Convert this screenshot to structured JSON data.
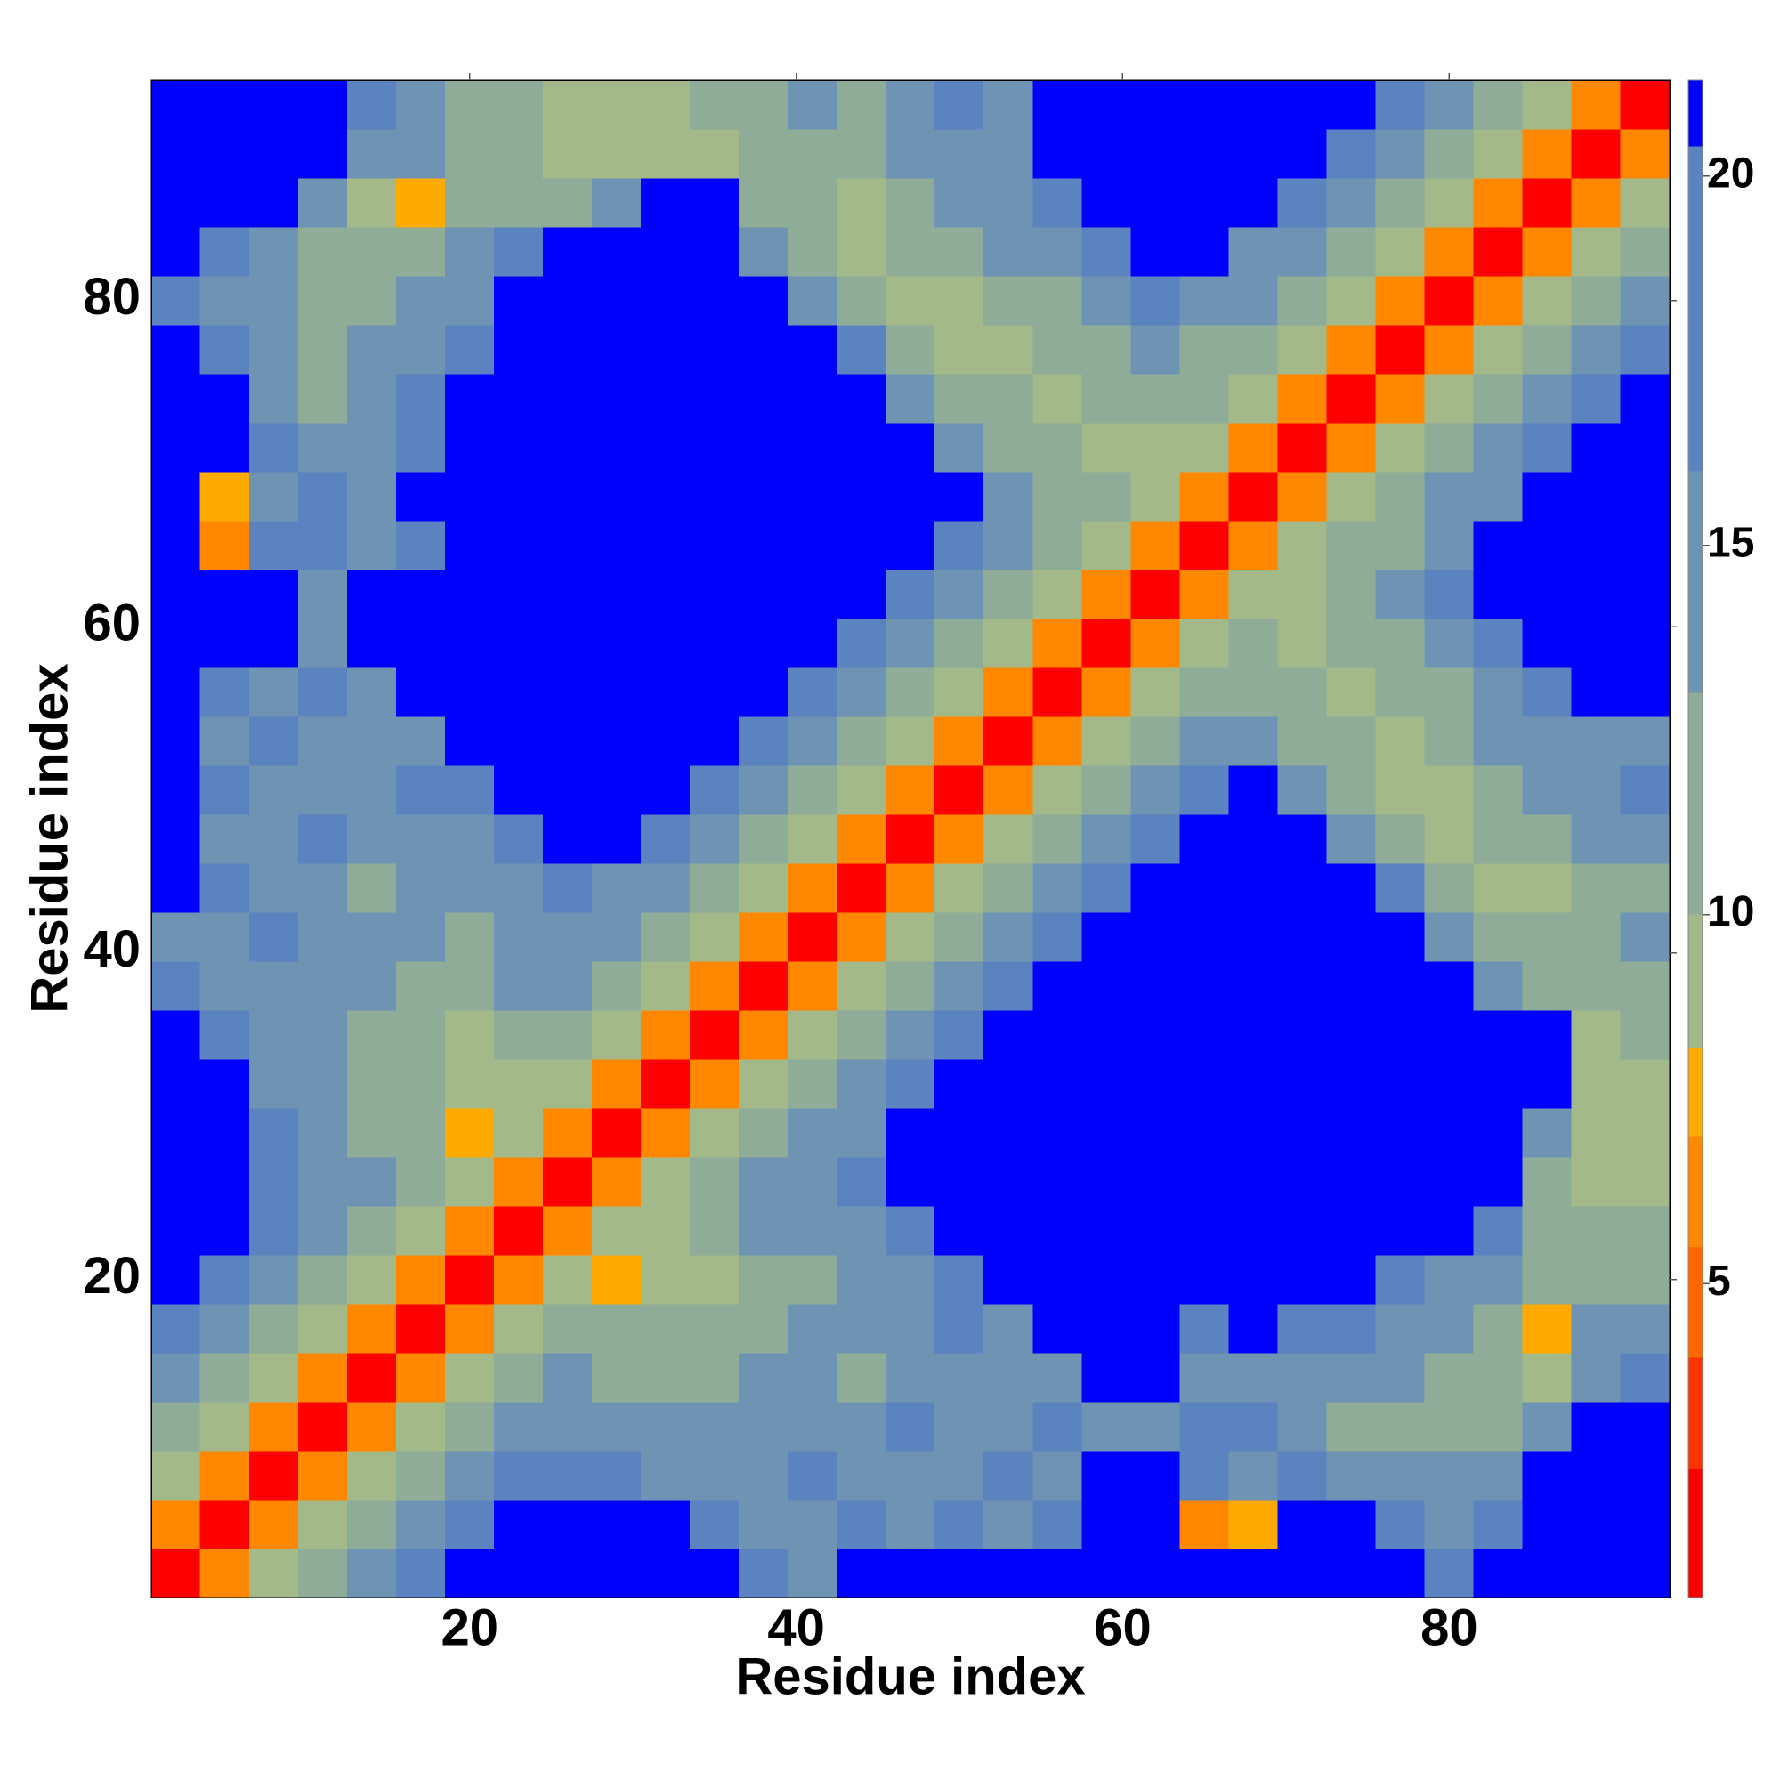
{
  "chart_data": {
    "type": "heatmap",
    "xlabel": "Residue index",
    "ylabel": "Residue index",
    "x": [
      2,
      5,
      8,
      11,
      14,
      17,
      20,
      23,
      26,
      29,
      32,
      35,
      38,
      41,
      44,
      47,
      50,
      53,
      56,
      59,
      62,
      65,
      68,
      71,
      74,
      77,
      80,
      83,
      86,
      89,
      92
    ],
    "y": [
      2,
      5,
      8,
      11,
      14,
      17,
      20,
      23,
      26,
      29,
      32,
      35,
      38,
      41,
      44,
      47,
      50,
      53,
      56,
      59,
      62,
      65,
      68,
      71,
      74,
      77,
      80,
      83,
      86,
      89,
      92
    ],
    "symmetric": true,
    "values": [
      [
        2
      ],
      [
        6,
        2
      ],
      [
        9,
        6,
        2
      ],
      [
        13,
        9,
        6,
        2
      ],
      [
        16,
        13,
        9,
        6,
        2
      ],
      [
        17,
        16,
        13,
        9,
        6,
        2
      ],
      [
        22,
        17,
        16,
        13,
        9,
        6,
        2
      ],
      [
        22,
        22,
        17,
        16,
        13,
        9,
        6,
        2
      ],
      [
        22,
        22,
        17,
        15,
        14,
        12,
        9,
        6,
        2
      ],
      [
        22,
        22,
        17,
        15,
        13,
        11,
        8,
        9,
        6,
        2
      ],
      [
        22,
        22,
        16,
        15,
        12,
        11,
        9,
        10,
        9,
        6,
        2
      ],
      [
        22,
        17,
        16,
        14,
        13,
        11,
        10,
        12,
        12,
        9,
        6,
        2
      ],
      [
        17,
        15,
        16,
        14,
        15,
        13,
        12,
        14,
        15,
        13,
        9,
        6,
        2
      ],
      [
        16,
        16,
        17,
        15,
        16,
        14,
        13,
        15,
        16,
        15,
        13,
        9,
        6,
        2
      ],
      [
        22,
        17,
        16,
        15,
        11,
        15,
        14,
        16,
        17,
        16,
        14,
        12,
        9,
        6,
        2
      ],
      [
        22,
        16,
        15,
        17,
        14,
        16,
        15,
        17,
        22,
        22,
        17,
        15,
        12,
        9,
        6,
        2
      ],
      [
        22,
        17,
        16,
        15,
        16,
        17,
        17,
        22,
        22,
        22,
        22,
        17,
        15,
        12,
        9,
        6,
        2
      ],
      [
        22,
        16,
        17,
        15,
        16,
        15,
        22,
        22,
        22,
        22,
        22,
        22,
        17,
        15,
        12,
        9,
        6,
        2
      ],
      [
        22,
        17,
        16,
        17,
        16,
        22,
        22,
        22,
        22,
        22,
        22,
        22,
        22,
        17,
        15,
        12,
        9,
        6,
        2
      ],
      [
        22,
        22,
        22,
        16,
        22,
        22,
        22,
        22,
        22,
        22,
        22,
        22,
        22,
        22,
        17,
        15,
        12,
        9,
        6,
        2
      ],
      [
        22,
        22,
        22,
        16,
        22,
        22,
        22,
        22,
        22,
        22,
        22,
        22,
        22,
        22,
        22,
        17,
        14,
        12,
        9,
        6,
        2
      ],
      [
        22,
        7,
        17,
        17,
        16,
        17,
        22,
        22,
        22,
        22,
        22,
        22,
        22,
        22,
        22,
        22,
        17,
        15,
        12,
        9,
        6,
        2
      ],
      [
        22,
        8,
        16,
        17,
        16,
        22,
        22,
        22,
        22,
        22,
        22,
        22,
        22,
        22,
        22,
        22,
        22,
        16,
        13,
        11,
        9,
        6,
        2
      ],
      [
        22,
        22,
        17,
        16,
        15,
        17,
        22,
        22,
        22,
        22,
        22,
        22,
        22,
        22,
        22,
        22,
        16,
        13,
        11,
        9,
        10,
        9,
        6,
        2
      ],
      [
        22,
        22,
        16,
        12,
        15,
        17,
        22,
        22,
        22,
        22,
        22,
        22,
        22,
        22,
        22,
        16,
        13,
        11,
        9,
        11,
        12,
        11,
        9,
        6,
        2
      ],
      [
        22,
        17,
        16,
        11,
        14,
        15,
        17,
        22,
        22,
        22,
        22,
        22,
        22,
        22,
        17,
        13,
        10,
        9,
        11,
        13,
        14,
        13,
        12,
        9,
        6,
        2
      ],
      [
        17,
        16,
        15,
        11,
        13,
        14,
        16,
        22,
        22,
        22,
        22,
        22,
        22,
        16,
        12,
        10,
        9,
        11,
        13,
        15,
        17,
        16,
        14,
        12,
        9,
        6,
        2
      ],
      [
        22,
        17,
        15,
        13,
        12,
        13,
        15,
        17,
        22,
        22,
        22,
        22,
        16,
        12,
        9,
        11,
        12,
        14,
        16,
        17,
        22,
        22,
        16,
        14,
        11,
        9,
        6,
        2
      ],
      [
        22,
        22,
        22,
        16,
        10,
        8,
        11,
        12,
        13,
        14,
        22,
        22,
        13,
        11,
        10,
        12,
        14,
        15,
        17,
        22,
        22,
        22,
        22,
        17,
        14,
        12,
        9,
        6,
        2
      ],
      [
        22,
        22,
        22,
        22,
        16,
        14,
        13,
        12,
        10,
        9,
        10,
        9,
        11,
        12,
        12,
        14,
        15,
        16,
        22,
        22,
        22,
        22,
        22,
        22,
        17,
        16,
        13,
        10,
        6,
        2
      ],
      [
        22,
        22,
        22,
        22,
        17,
        15,
        13,
        11,
        10,
        9,
        10,
        11,
        12,
        14,
        13,
        15,
        17,
        15,
        22,
        22,
        22,
        22,
        22,
        22,
        22,
        17,
        16,
        13,
        10,
        6,
        2
      ]
    ],
    "xlim": [
      0.5,
      93.5
    ],
    "ylim": [
      0.5,
      93.5
    ],
    "xticks": [
      20,
      40,
      60,
      80
    ],
    "yticks": [
      20,
      40,
      60,
      80
    ],
    "zlim": [
      0.75,
      21.3
    ],
    "zticks": [
      5,
      10,
      15,
      20
    ],
    "colorscale": [
      {
        "value": 2.5,
        "color": "#ff0000"
      },
      {
        "value": 4,
        "color": "#ff3300"
      },
      {
        "value": 5.5,
        "color": "#ff6600"
      },
      {
        "value": 7,
        "color": "#ff8800"
      },
      {
        "value": 8.2,
        "color": "#ffaa00"
      },
      {
        "value": 10,
        "color": "#a3b98a"
      },
      {
        "value": 13,
        "color": "#8eac98"
      },
      {
        "value": 16,
        "color": "#6f93b3"
      },
      {
        "value": 20.4,
        "color": "#5b83c0"
      },
      {
        "value": 22,
        "color": "#0000ff"
      }
    ]
  }
}
